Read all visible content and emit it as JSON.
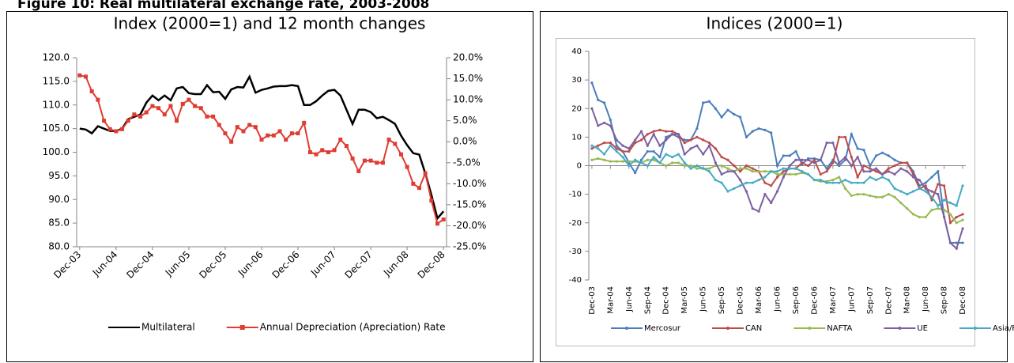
{
  "page_title": "Figure 10: Real multilateral exchange rate, 2003-2008",
  "chart_data": [
    {
      "type": "line",
      "title": "Index (2000=1) and 12 month changes",
      "categories": [
        "Dec-03",
        null,
        null,
        null,
        null,
        null,
        "Jun-04",
        null,
        null,
        null,
        null,
        null,
        "Dec-04",
        null,
        null,
        null,
        null,
        null,
        "Jun-05",
        null,
        null,
        null,
        null,
        null,
        "Dec-05",
        null,
        null,
        null,
        null,
        null,
        "Jun-06",
        null,
        null,
        null,
        null,
        null,
        "Dec-06",
        null,
        null,
        null,
        null,
        null,
        "Jun-07",
        null,
        null,
        null,
        null,
        null,
        "Dec-07",
        null,
        null,
        null,
        null,
        null,
        "Jun-08",
        null,
        null,
        null,
        null,
        null,
        "Dec-08"
      ],
      "series": [
        {
          "name": "Multilateral",
          "color": "#000000",
          "values": [
            105,
            104.8,
            104,
            105.5,
            105,
            104.5,
            104.5,
            105,
            107,
            107.5,
            108,
            110.5,
            112,
            111,
            112,
            111,
            113.5,
            113.8,
            112.5,
            112.3,
            112.3,
            114.2,
            112.7,
            112.8,
            111.3,
            113.3,
            113.8,
            113.7,
            116,
            112.6,
            113.2,
            113.5,
            113.9,
            114,
            114,
            114.2,
            114,
            110,
            110,
            110.8,
            112,
            113,
            113.2,
            112,
            109,
            106,
            109,
            109,
            108.5,
            107.2,
            107.5,
            106.8,
            106,
            103.5,
            101.5,
            99.8,
            99.5,
            95.5,
            91,
            86,
            87.5
          ]
        },
        {
          "name": "Annual Depreciation (Apreciation) Rate",
          "color": "#e03c31",
          "axis": "y2",
          "marker": "square",
          "values": [
            15.8,
            15.5,
            12,
            10,
            5,
            3,
            2.5,
            3,
            5,
            6.5,
            6,
            7,
            8.5,
            8,
            6.5,
            8.5,
            5,
            9,
            10,
            8.5,
            8,
            6,
            6,
            4,
            2,
            0,
            3.5,
            2.5,
            4,
            3.5,
            0.5,
            1.5,
            1.5,
            2.5,
            0.5,
            2,
            2,
            4.5,
            -2.5,
            -3,
            -2,
            -2.5,
            -2,
            0.5,
            -1,
            -4,
            -7,
            -4.5,
            -4.5,
            -5,
            -5,
            0.5,
            -0.5,
            -3,
            -6,
            -10,
            -11,
            -7.5,
            -14,
            -19.5,
            -18.5
          ]
        }
      ],
      "ylim": [
        80,
        120
      ],
      "yticks": [
        {
          "value": 80,
          "label": "80.0"
        },
        {
          "value": 85,
          "label": "85.0"
        },
        {
          "value": 90,
          "label": "90.0"
        },
        {
          "value": 95,
          "label": "95.0"
        },
        {
          "value": 100,
          "label": "100.0"
        },
        {
          "value": 105,
          "label": "105.0"
        },
        {
          "value": 110,
          "label": "110.0"
        },
        {
          "value": 115,
          "label": "115.0"
        },
        {
          "value": 120,
          "label": "120.0"
        }
      ],
      "y2lim": [
        -25,
        20
      ],
      "y2ticks": [
        {
          "value": -25,
          "label": "-25.0%"
        },
        {
          "value": -20,
          "label": "-20.0%"
        },
        {
          "value": -15,
          "label": "-15.0%"
        },
        {
          "value": -10,
          "label": "-10.0%"
        },
        {
          "value": -5,
          "label": "-5.0%"
        },
        {
          "value": 0,
          "label": "0.0%"
        },
        {
          "value": 5,
          "label": "5.0%"
        },
        {
          "value": 10,
          "label": "10.0%"
        },
        {
          "value": 15,
          "label": "15.0%"
        },
        {
          "value": 20,
          "label": "20.0%"
        }
      ],
      "legend": "bottom"
    },
    {
      "type": "line",
      "title": "Indices (2000=1)",
      "categories": [
        "Dec-03",
        null,
        null,
        "Mar-04",
        null,
        null,
        "Jun-04",
        null,
        null,
        "Sep-04",
        null,
        null,
        "Dec-04",
        null,
        null,
        "Mar-05",
        null,
        null,
        "Jun-05",
        null,
        null,
        "Sep-05",
        null,
        null,
        "Dec-05",
        null,
        null,
        "Mar-06",
        null,
        null,
        "Jun-06",
        null,
        null,
        "Sep-06",
        null,
        null,
        "Dec-06",
        null,
        null,
        "Mar-07",
        null,
        null,
        "Jun-07",
        null,
        null,
        "Sep-07",
        null,
        null,
        "Dec-07",
        null,
        null,
        "Mar-08",
        null,
        null,
        "Jun-08",
        null,
        null,
        "Sep-08",
        null,
        null,
        "Dec-08"
      ],
      "series": [
        {
          "name": "Mercosur",
          "color": "#4a7ebb",
          "marker": "circle",
          "values": [
            29,
            23,
            22,
            16,
            7,
            5,
            1,
            -2.5,
            2,
            5,
            5,
            3,
            10,
            11,
            10,
            9,
            9,
            13,
            22,
            22.5,
            20,
            17,
            19.5,
            18,
            17,
            10,
            12,
            13,
            12.5,
            11.5,
            0,
            3.5,
            3.5,
            5,
            0.5,
            2.5,
            2.5,
            2,
            -1,
            2,
            0,
            2,
            11,
            6,
            5.5,
            0,
            3.5,
            4.5,
            3.5,
            2,
            1,
            1,
            -2,
            -7,
            -6,
            -4,
            -2,
            -18,
            -27,
            -27,
            -27
          ]
        },
        {
          "name": "CAN",
          "color": "#be4b48",
          "marker": "circle",
          "values": [
            6,
            7,
            8,
            8,
            6,
            5,
            5,
            8,
            9,
            11,
            12,
            12.5,
            12,
            12,
            11,
            8,
            9,
            10,
            9,
            8,
            6,
            3,
            2,
            0,
            -2,
            0,
            -1,
            -2,
            -6,
            -7,
            -4,
            -2,
            -1,
            -1,
            1,
            0,
            2,
            -3,
            -2,
            1,
            10,
            10,
            3,
            -4,
            0,
            -1,
            -2,
            -3,
            -1,
            0,
            1,
            1,
            -3,
            -8,
            -7,
            -12,
            -6.5,
            -7,
            -20,
            -18,
            -17
          ]
        },
        {
          "name": "NAFTA",
          "color": "#98b954",
          "marker": "circle",
          "values": [
            2,
            2.5,
            2,
            1.5,
            1.5,
            1.5,
            1.5,
            1.5,
            1,
            2,
            2,
            1,
            0,
            1,
            1,
            0,
            0,
            -1,
            -1,
            -1,
            0,
            0,
            -1,
            -2,
            -1,
            -1,
            -2,
            -2,
            -2,
            -2,
            -3,
            -3,
            -3,
            -3,
            -2.5,
            -3,
            -5,
            -5.5,
            -5.5,
            -5,
            -4,
            -8,
            -10.5,
            -10,
            -10,
            -10.5,
            -11,
            -11,
            -10,
            -11,
            -13,
            -15,
            -17,
            -18,
            -18,
            -15.5,
            -15,
            -15.5,
            -17,
            -20,
            -19
          ]
        },
        {
          "name": "UE",
          "color": "#7d60a0",
          "marker": "circle",
          "values": [
            20,
            14,
            15,
            14,
            9,
            7,
            6,
            9,
            12,
            7,
            11,
            7,
            9,
            11,
            11,
            4,
            6,
            7,
            4,
            7,
            1,
            -3,
            -2,
            -2,
            -5,
            -9,
            -15,
            -16,
            -10,
            -13,
            -9,
            -4,
            0,
            2,
            2,
            2,
            1,
            2,
            8,
            8,
            1,
            3,
            0,
            3,
            -2,
            -2,
            -1,
            -3,
            -2,
            -3,
            -1,
            -2,
            -4,
            -5,
            -8,
            -9,
            -10,
            -18,
            -27,
            -29,
            -22
          ]
        },
        {
          "name": "Asia/Pacifico",
          "color": "#46aac5",
          "marker": "circle",
          "values": [
            7,
            6,
            4,
            7,
            5,
            3,
            0,
            2,
            1,
            0,
            3,
            1,
            4,
            3,
            4,
            1,
            -1,
            0,
            -1,
            -2,
            -5,
            -6,
            -9,
            -8,
            -7,
            -6,
            -6,
            -5,
            -4,
            -2,
            -2,
            -1,
            -1,
            -1,
            -2,
            -3,
            -5,
            -5,
            -6,
            -6,
            -6,
            -5,
            -6,
            -6,
            -6,
            -4,
            -5,
            -4,
            -5,
            -8,
            -9,
            -10,
            -9,
            -8,
            -9,
            -11,
            -14,
            -12,
            -13,
            -14,
            -7
          ]
        }
      ],
      "ylim": [
        -40,
        40
      ],
      "yticks": [
        -40,
        -30,
        -20,
        -10,
        0,
        10,
        20,
        30,
        40
      ],
      "legend": "bottom"
    }
  ]
}
